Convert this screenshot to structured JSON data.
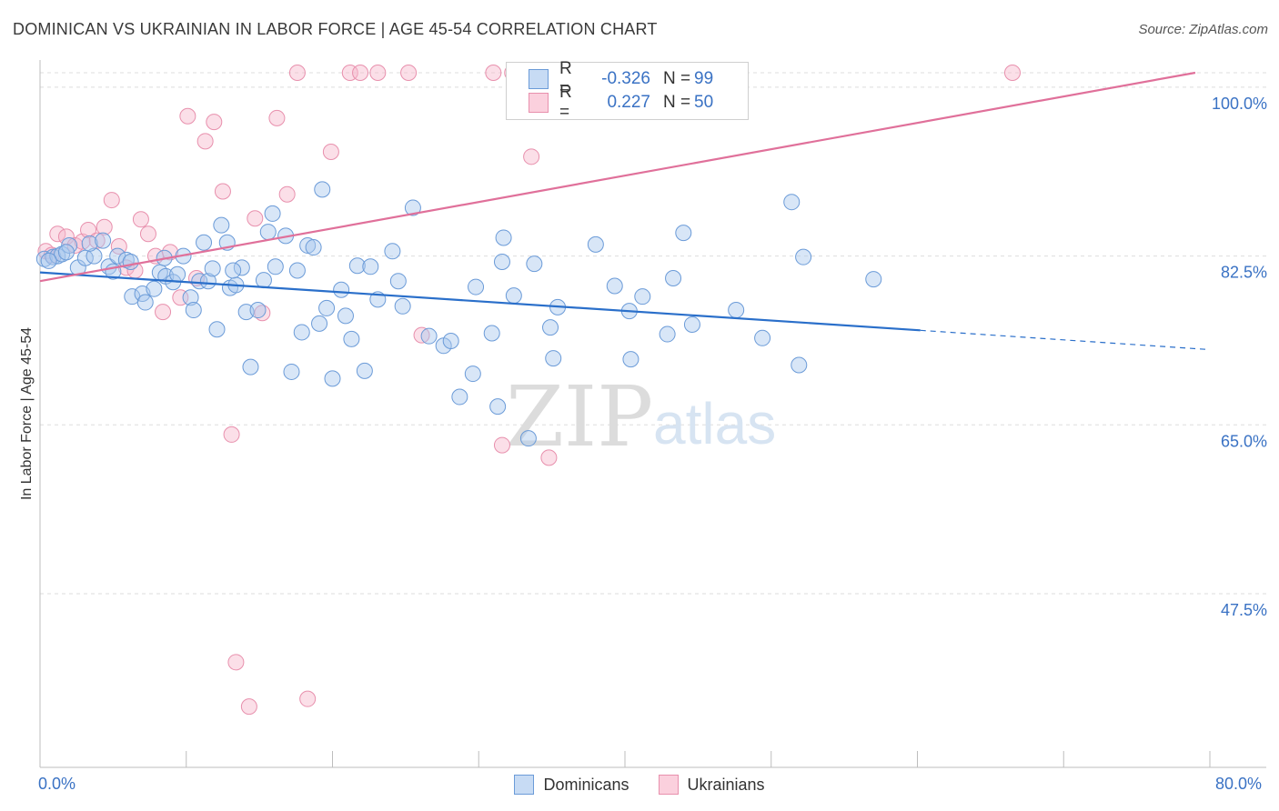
{
  "header": {
    "title": "DOMINICAN VS UKRAINIAN IN LABOR FORCE | AGE 45-54 CORRELATION CHART",
    "source": "Source: ZipAtlas.com"
  },
  "watermark": {
    "zip": "ZIP",
    "atlas": "atlas"
  },
  "legend": {
    "rows": [
      {
        "r_label": "R =",
        "r_value": "-0.326",
        "n_label": "N =",
        "n_value": "99"
      },
      {
        "r_label": "R =",
        "r_value": "0.227",
        "n_label": "N =",
        "n_value": "50"
      }
    ]
  },
  "bottom_legend": [
    "Dominicans",
    "Ukrainians"
  ],
  "colors": {
    "blue_fill": "#a9c8ee",
    "blue_stroke": "#6b9bd8",
    "blue_line": "#2a6fca",
    "pink_fill": "#f6b9cb",
    "pink_stroke": "#e890ad",
    "pink_line": "#e0709a",
    "tick_text": "#3a72c4",
    "grid": "#dddddd"
  },
  "chart_data": {
    "type": "scatter",
    "title": "DOMINICAN VS UKRAINIAN IN LABOR FORCE | AGE 45-54 CORRELATION CHART",
    "xlabel": "",
    "ylabel": "In Labor Force | Age 45-54",
    "xlim": [
      0,
      80
    ],
    "ylim": [
      29.5,
      101.5
    ],
    "x_ticks": [
      0,
      80
    ],
    "x_tick_labels": [
      "0.0%",
      "80.0%"
    ],
    "y_ticks": [
      100,
      82.5,
      65,
      47.5
    ],
    "y_tick_labels": [
      "100.0%",
      "82.5%",
      "65.0%",
      "47.5%"
    ],
    "grid": true,
    "legend_position": "top-center",
    "series": [
      {
        "name": "Dominicans",
        "R": -0.326,
        "N": 99,
        "trend": {
          "x0": 0,
          "y0": 80.8,
          "x1": 60.2,
          "y1": 74.8,
          "dash_to_x": 80,
          "dash_to_y": 72.8
        },
        "points": [
          [
            0.3,
            82.2
          ],
          [
            0.9,
            82.4
          ],
          [
            1.2,
            82.5
          ],
          [
            1.5,
            82.7
          ],
          [
            2.0,
            83.6
          ],
          [
            2.6,
            81.3
          ],
          [
            3.1,
            82.3
          ],
          [
            3.7,
            82.5
          ],
          [
            3.4,
            83.8
          ],
          [
            4.3,
            84.1
          ],
          [
            4.7,
            81.4
          ],
          [
            5.3,
            82.5
          ],
          [
            5.9,
            82.1
          ],
          [
            6.2,
            81.9
          ],
          [
            6.3,
            78.3
          ],
          [
            7.0,
            78.6
          ],
          [
            7.2,
            77.7
          ],
          [
            7.8,
            79.1
          ],
          [
            8.2,
            80.8
          ],
          [
            8.5,
            82.3
          ],
          [
            8.6,
            80.4
          ],
          [
            9.1,
            79.8
          ],
          [
            9.4,
            80.6
          ],
          [
            9.8,
            82.5
          ],
          [
            10.3,
            78.2
          ],
          [
            10.5,
            76.9
          ],
          [
            10.9,
            79.9
          ],
          [
            11.2,
            83.9
          ],
          [
            11.5,
            79.9
          ],
          [
            11.8,
            81.2
          ],
          [
            12.1,
            74.9
          ],
          [
            12.4,
            85.7
          ],
          [
            12.8,
            83.9
          ],
          [
            13.0,
            79.2
          ],
          [
            13.4,
            79.5
          ],
          [
            13.8,
            81.3
          ],
          [
            14.1,
            76.7
          ],
          [
            14.4,
            71.0
          ],
          [
            14.9,
            76.9
          ],
          [
            15.3,
            80.0
          ],
          [
            15.6,
            85.0
          ],
          [
            15.9,
            86.9
          ],
          [
            16.1,
            81.4
          ],
          [
            16.8,
            84.6
          ],
          [
            17.2,
            70.5
          ],
          [
            17.6,
            81.0
          ],
          [
            17.9,
            74.6
          ],
          [
            18.3,
            83.6
          ],
          [
            18.7,
            83.4
          ],
          [
            19.1,
            75.5
          ],
          [
            19.3,
            89.4
          ],
          [
            19.6,
            77.1
          ],
          [
            20.0,
            69.8
          ],
          [
            20.6,
            79.0
          ],
          [
            20.9,
            76.3
          ],
          [
            21.3,
            73.9
          ],
          [
            21.7,
            81.5
          ],
          [
            22.2,
            70.6
          ],
          [
            22.6,
            81.4
          ],
          [
            23.1,
            78.0
          ],
          [
            24.1,
            83.0
          ],
          [
            24.8,
            77.3
          ],
          [
            25.5,
            87.5
          ],
          [
            26.6,
            74.2
          ],
          [
            27.6,
            73.2
          ],
          [
            28.1,
            73.7
          ],
          [
            28.7,
            67.9
          ],
          [
            29.6,
            70.3
          ],
          [
            29.8,
            79.3
          ],
          [
            30.9,
            74.5
          ],
          [
            31.3,
            66.9
          ],
          [
            31.6,
            81.9
          ],
          [
            31.7,
            84.4
          ],
          [
            32.4,
            78.4
          ],
          [
            33.4,
            63.6
          ],
          [
            33.8,
            81.7
          ],
          [
            34.9,
            75.1
          ],
          [
            35.1,
            71.9
          ],
          [
            35.4,
            77.2
          ],
          [
            38.0,
            83.7
          ],
          [
            39.3,
            79.4
          ],
          [
            40.3,
            76.8
          ],
          [
            40.4,
            71.8
          ],
          [
            41.2,
            78.3
          ],
          [
            42.9,
            74.4
          ],
          [
            43.3,
            80.2
          ],
          [
            44.0,
            84.9
          ],
          [
            44.6,
            75.4
          ],
          [
            47.6,
            76.9
          ],
          [
            49.4,
            74.0
          ],
          [
            51.4,
            88.1
          ],
          [
            51.9,
            71.2
          ],
          [
            52.2,
            82.4
          ],
          [
            57.0,
            80.1
          ],
          [
            0.6,
            82.0
          ],
          [
            1.8,
            82.9
          ],
          [
            5.0,
            80.9
          ],
          [
            13.2,
            81.0
          ],
          [
            24.5,
            79.9
          ]
        ]
      },
      {
        "name": "Ukrainians",
        "R": 0.227,
        "N": 50,
        "trend": {
          "x0": 0,
          "y0": 79.9,
          "x1": 79.0,
          "y1": 101.5
        },
        "points": [
          [
            0.4,
            83.0
          ],
          [
            0.8,
            82.6
          ],
          [
            1.2,
            84.8
          ],
          [
            1.8,
            84.5
          ],
          [
            2.4,
            83.6
          ],
          [
            2.9,
            84.0
          ],
          [
            3.3,
            85.2
          ],
          [
            3.9,
            84.1
          ],
          [
            4.4,
            85.5
          ],
          [
            4.9,
            88.3
          ],
          [
            5.4,
            83.5
          ],
          [
            5.9,
            81.3
          ],
          [
            6.5,
            81.0
          ],
          [
            6.9,
            86.3
          ],
          [
            7.4,
            84.8
          ],
          [
            7.9,
            82.5
          ],
          [
            8.4,
            76.7
          ],
          [
            8.9,
            82.9
          ],
          [
            9.6,
            78.2
          ],
          [
            10.1,
            97.0
          ],
          [
            10.7,
            80.2
          ],
          [
            11.3,
            94.4
          ],
          [
            11.9,
            96.4
          ],
          [
            12.5,
            89.2
          ],
          [
            13.1,
            64.0
          ],
          [
            13.4,
            40.4
          ],
          [
            14.3,
            35.8
          ],
          [
            14.7,
            86.4
          ],
          [
            15.2,
            76.6
          ],
          [
            16.2,
            96.8
          ],
          [
            16.9,
            88.9
          ],
          [
            17.6,
            101.5
          ],
          [
            18.3,
            36.6
          ],
          [
            19.9,
            93.3
          ],
          [
            21.2,
            101.5
          ],
          [
            21.9,
            101.5
          ],
          [
            23.1,
            101.5
          ],
          [
            25.2,
            101.5
          ],
          [
            26.1,
            74.3
          ],
          [
            31.0,
            101.5
          ],
          [
            31.6,
            62.9
          ],
          [
            32.3,
            101.5
          ],
          [
            33.6,
            92.8
          ],
          [
            34.8,
            61.6
          ],
          [
            35.9,
            101.5
          ],
          [
            36.8,
            101.5
          ],
          [
            38.4,
            101.5
          ],
          [
            39.9,
            101.5
          ],
          [
            45.4,
            101.5
          ],
          [
            66.5,
            101.5
          ]
        ]
      }
    ]
  }
}
